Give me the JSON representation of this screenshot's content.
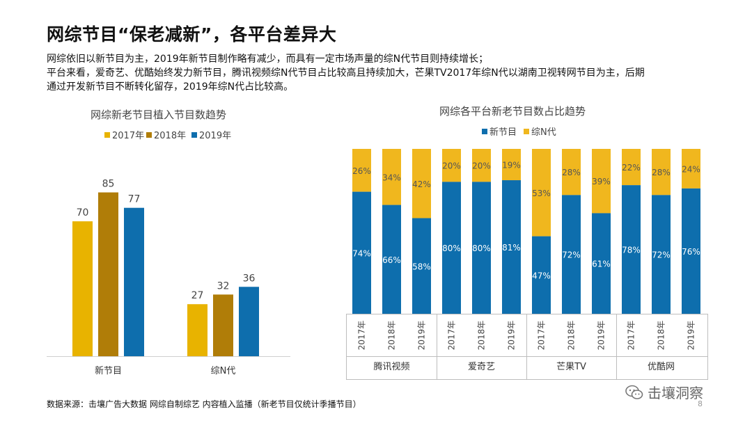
{
  "title": "网综节目“保老减新”，各平台差异大",
  "intro": [
    "网综依旧以新节目为主，2019年新节目制作略有减少，而具有一定市场声量的综N代节目则持续增长；",
    "平台来看，爱奇艺、优酷始终发力新节目，腾讯视频综N代节目占比较高且持续加大，芒果TV2017年综N代以湖南卫视转网节目为主，后期",
    "通过开发新节目不断转化留存，2019年综N代占比较高。"
  ],
  "footer": "数据来源：击壤广告大数据 网综自制综艺 内容植入监播（新老节目仅统计季播节目）",
  "watermark": "击壤洞察",
  "page_number": "8",
  "colors": {
    "y2017": "#E8B300",
    "y2018": "#B07D08",
    "y2019": "#0E6EAD",
    "new": "#0E6EAD",
    "old": "#F0B71E"
  },
  "chart_data": [
    {
      "type": "bar",
      "title": "网综新老节目植入节目数趋势",
      "categories": [
        "新节目",
        "综N代"
      ],
      "series": [
        {
          "name": "2017年",
          "values": [
            70,
            27
          ]
        },
        {
          "name": "2018年",
          "values": [
            85,
            32
          ]
        },
        {
          "name": "2019年",
          "values": [
            77,
            36
          ]
        }
      ],
      "ylim": [
        0,
        100
      ],
      "legend": "top",
      "grid": false
    },
    {
      "type": "bar",
      "stacked": true,
      "percent": true,
      "title": "网综各平台新老节目数占比趋势",
      "groups": [
        {
          "name": "腾讯视频",
          "years": [
            "2017年",
            "2018年",
            "2019年"
          ]
        },
        {
          "name": "爱奇艺",
          "years": [
            "2017年",
            "2018年",
            "2019年"
          ]
        },
        {
          "name": "芒果TV",
          "years": [
            "2017年",
            "2018年",
            "2019年"
          ]
        },
        {
          "name": "优酷网",
          "years": [
            "2017年",
            "2018年",
            "2019年"
          ]
        }
      ],
      "series": [
        {
          "name": "新节目",
          "values": [
            74,
            66,
            58,
            80,
            80,
            81,
            47,
            72,
            61,
            78,
            72,
            76
          ]
        },
        {
          "name": "综N代",
          "values": [
            26,
            34,
            42,
            20,
            20,
            19,
            53,
            28,
            39,
            22,
            28,
            24
          ]
        }
      ],
      "ylim": [
        0,
        100
      ],
      "legend": "top",
      "grid": false
    }
  ]
}
